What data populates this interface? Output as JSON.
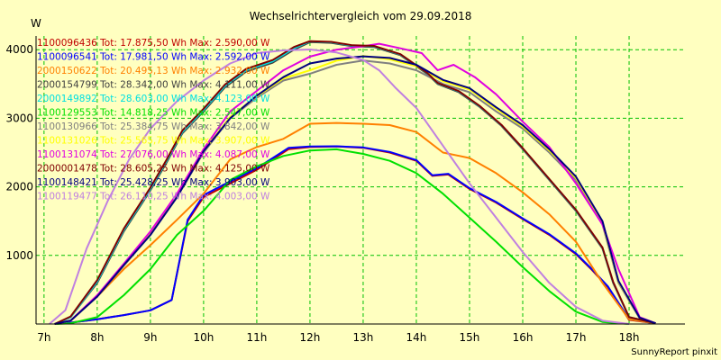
{
  "chart_data": {
    "type": "line",
    "title": "Wechselrichtervergleich vom 29.09.2018",
    "ylabel": "W",
    "footer": "SunnyReport pinxit",
    "ylim": [
      0,
      4200
    ],
    "xlim": [
      6.85,
      19.05
    ],
    "y_ticks": [
      1000,
      2000,
      3000,
      4000
    ],
    "x_ticks": [
      7,
      8,
      9,
      10,
      11,
      12,
      13,
      14,
      15,
      16,
      17,
      18
    ],
    "x_tick_labels": [
      "7h",
      "8h",
      "9h",
      "10h",
      "11h",
      "12h",
      "13h",
      "14h",
      "15h",
      "16h",
      "17h",
      "18h"
    ],
    "grid": true,
    "legend_placement": "top-left",
    "series": [
      {
        "name": "1100096436 Tot: 17.875,50 Wh Max: 2.590,00 W",
        "color": "#c00000",
        "x": [
          7.2,
          7.5,
          8,
          8.5,
          9,
          9.4,
          9.7,
          10,
          10.5,
          11,
          11.3,
          11.6,
          12,
          12.5,
          13,
          13.5,
          14,
          14.3,
          14.6,
          15,
          15.5,
          16,
          16.5,
          17,
          17.3,
          17.6,
          18,
          18.5
        ],
        "y": [
          0,
          20,
          70,
          130,
          200,
          350,
          1500,
          1850,
          2050,
          2250,
          2400,
          2550,
          2580,
          2590,
          2570,
          2500,
          2380,
          2160,
          2180,
          1970,
          1770,
          1530,
          1300,
          1020,
          790,
          540,
          60,
          10
        ]
      },
      {
        "name": "1100096541 Tot: 17.981,50 Wh Max: 2.592,00 W",
        "color": "#0000ff",
        "x": [
          7.2,
          7.5,
          8,
          8.5,
          9,
          9.4,
          9.7,
          10,
          10.5,
          11,
          11.3,
          11.6,
          12,
          12.5,
          13,
          13.5,
          14,
          14.3,
          14.6,
          15,
          15.5,
          16,
          16.5,
          17,
          17.3,
          17.6,
          18,
          18.5
        ],
        "y": [
          0,
          20,
          70,
          130,
          200,
          350,
          1520,
          1880,
          2080,
          2270,
          2420,
          2570,
          2590,
          2592,
          2575,
          2510,
          2390,
          2170,
          2190,
          1980,
          1780,
          1540,
          1310,
          1030,
          800,
          550,
          70,
          10
        ]
      },
      {
        "name": "2000150622 Tot: 20.495,13 Wh Max: 2.932,00 W",
        "color": "#ff8000",
        "x": [
          7.2,
          7.5,
          8,
          8.5,
          9,
          9.5,
          10,
          10.5,
          11,
          11.5,
          12,
          12.5,
          13,
          13.5,
          14,
          14.5,
          15,
          15.5,
          16,
          16.5,
          17,
          17.5,
          18,
          18.5
        ],
        "y": [
          0,
          50,
          400,
          800,
          1150,
          1520,
          1900,
          2400,
          2580,
          2700,
          2920,
          2932,
          2920,
          2900,
          2800,
          2500,
          2420,
          2200,
          1920,
          1600,
          1200,
          600,
          70,
          10
        ]
      },
      {
        "name": "2000154799 Tot: 28.342,00 Wh Max: 4.111,00 W",
        "color": "#404040",
        "x": [
          7.2,
          7.5,
          8,
          8.5,
          9,
          9.3,
          9.6,
          10,
          10.4,
          10.8,
          11.3,
          11.7,
          12,
          12.4,
          12.8,
          13.2,
          13.7,
          14.2,
          14.4,
          14.8,
          15.2,
          15.6,
          16,
          16.5,
          17,
          17.5,
          17.7,
          18,
          18.5
        ],
        "y": [
          0,
          100,
          600,
          1350,
          1950,
          2350,
          2780,
          3100,
          3450,
          3680,
          3810,
          4000,
          4111,
          4100,
          4050,
          4040,
          3920,
          3650,
          3500,
          3380,
          3160,
          2890,
          2550,
          2100,
          1650,
          1100,
          600,
          100,
          10
        ]
      },
      {
        "name": "2000149892 Tot: 28.603,00 Wh Max: 4.123,00 W",
        "color": "#00e0e0",
        "x": [
          7.2,
          7.5,
          8,
          8.5,
          9,
          9.3,
          9.6,
          10,
          10.4,
          10.8,
          11.3,
          11.7,
          12,
          12.4,
          12.8,
          13.2,
          13.7,
          14.2,
          14.4,
          14.8,
          15.2,
          15.6,
          16,
          16.5,
          17,
          17.5,
          17.7,
          18,
          18.5
        ],
        "y": [
          0,
          100,
          620,
          1370,
          1970,
          2370,
          2800,
          3120,
          3470,
          3700,
          3830,
          4020,
          4123,
          4110,
          4060,
          4050,
          3930,
          3660,
          3510,
          3390,
          3170,
          2900,
          2560,
          2110,
          1660,
          1110,
          610,
          100,
          10
        ]
      },
      {
        "name": "1100129553 Tot: 14.818,25 Wh Max: 2.547,00 W",
        "color": "#00e000",
        "x": [
          7.2,
          7.5,
          8,
          8.5,
          9,
          9.5,
          10,
          10.5,
          11,
          11.5,
          12,
          12.5,
          13,
          13.5,
          14,
          14.5,
          15,
          15.5,
          16,
          16.5,
          17,
          17.5,
          18
        ],
        "y": [
          0,
          10,
          100,
          420,
          800,
          1300,
          1650,
          2100,
          2300,
          2450,
          2530,
          2547,
          2480,
          2380,
          2200,
          1900,
          1550,
          1200,
          830,
          480,
          180,
          30,
          0
        ]
      },
      {
        "name": "1100130966 Tot: 25.384,75 Wh Max: 3.842,00 W",
        "color": "#808080",
        "x": [
          7.2,
          7.5,
          8,
          8.5,
          9,
          9.5,
          10,
          10.5,
          11,
          11.5,
          12,
          12.5,
          13,
          13.5,
          14,
          14.5,
          15,
          15.5,
          16,
          16.5,
          17,
          17.5,
          17.8,
          18.2,
          18.5
        ],
        "y": [
          0,
          50,
          400,
          850,
          1300,
          1850,
          2500,
          3000,
          3300,
          3550,
          3650,
          3780,
          3842,
          3800,
          3700,
          3500,
          3380,
          3100,
          2850,
          2500,
          2100,
          1450,
          600,
          80,
          10
        ]
      },
      {
        "name": "1100131026 Tot: 25.565,75 Wh Max: 3.907,00 W",
        "color": "#ffff00",
        "x": [
          7.2,
          7.5,
          8,
          8.5,
          9,
          9.5,
          10,
          10.5,
          11,
          11.5,
          12,
          12.5,
          13,
          13.5,
          14,
          14.5,
          15,
          15.5,
          16,
          16.5,
          17,
          17.5,
          17.8,
          18.2,
          18.5
        ],
        "y": [
          0,
          50,
          410,
          860,
          1310,
          1860,
          2520,
          3020,
          3320,
          3580,
          3700,
          3840,
          3907,
          3860,
          3760,
          3540,
          3420,
          3140,
          2880,
          2530,
          2130,
          1480,
          620,
          90,
          10
        ]
      },
      {
        "name": "1100131074 Tot: 27.076,00 Wh Max: 4.087,00 W",
        "color": "#e000e0",
        "x": [
          7.2,
          7.5,
          8,
          8.5,
          9,
          9.5,
          10,
          10.5,
          11,
          11.5,
          12,
          12.5,
          13,
          13.3,
          13.7,
          14.1,
          14.4,
          14.7,
          15.1,
          15.5,
          16,
          16.5,
          17,
          17.5,
          17.8,
          18.2,
          18.5
        ],
        "y": [
          0,
          50,
          420,
          880,
          1350,
          1900,
          2550,
          3100,
          3400,
          3700,
          3900,
          4000,
          4050,
          4087,
          4020,
          3950,
          3700,
          3780,
          3600,
          3350,
          2950,
          2580,
          2050,
          1450,
          800,
          100,
          10
        ]
      },
      {
        "name": "2000001478 Tot: 28.605,25 Wh Max: 4.125,00 W",
        "color": "#800000",
        "x": [
          7.2,
          7.5,
          8,
          8.5,
          9,
          9.3,
          9.6,
          10,
          10.4,
          10.8,
          11.3,
          11.7,
          12,
          12.4,
          12.8,
          13.2,
          13.7,
          14.2,
          14.4,
          14.8,
          15.2,
          15.6,
          16,
          16.5,
          17,
          17.5,
          17.7,
          18,
          18.5
        ],
        "y": [
          0,
          110,
          640,
          1390,
          1990,
          2390,
          2820,
          3140,
          3490,
          3720,
          3850,
          4040,
          4125,
          4115,
          4065,
          4055,
          3935,
          3665,
          3515,
          3395,
          3175,
          2905,
          2565,
          2115,
          1665,
          1115,
          615,
          100,
          10
        ]
      },
      {
        "name": "1100148421 Tot: 25.428,25 Wh Max: 3.903,00 W",
        "color": "#000080",
        "x": [
          7.2,
          7.5,
          8,
          8.5,
          9,
          9.5,
          10,
          10.5,
          11,
          11.5,
          12,
          12.5,
          13,
          13.5,
          14,
          14.5,
          15,
          15.5,
          16,
          16.5,
          17,
          17.5,
          17.8,
          18.2,
          18.5
        ],
        "y": [
          0,
          50,
          400,
          860,
          1300,
          1850,
          2520,
          3000,
          3330,
          3600,
          3800,
          3870,
          3903,
          3880,
          3780,
          3560,
          3440,
          3160,
          2900,
          2550,
          2150,
          1500,
          630,
          90,
          10
        ]
      },
      {
        "name": "1100119477 Tot: 26.110,25 Wh Max: 4.003,00 W",
        "color": "#c080e0",
        "x": [
          7.1,
          7.4,
          7.8,
          8.2,
          8.6,
          9,
          9.5,
          10,
          10.5,
          11,
          11.5,
          12,
          12.5,
          13,
          13.3,
          13.6,
          14,
          14.5,
          15,
          15.5,
          16,
          16.5,
          17,
          17.5,
          18
        ],
        "y": [
          0,
          200,
          1100,
          1800,
          2400,
          2850,
          3250,
          3550,
          3800,
          3950,
          3990,
          4003,
          3960,
          3850,
          3700,
          3450,
          3150,
          2600,
          2050,
          1550,
          1050,
          600,
          250,
          50,
          0
        ]
      }
    ]
  }
}
